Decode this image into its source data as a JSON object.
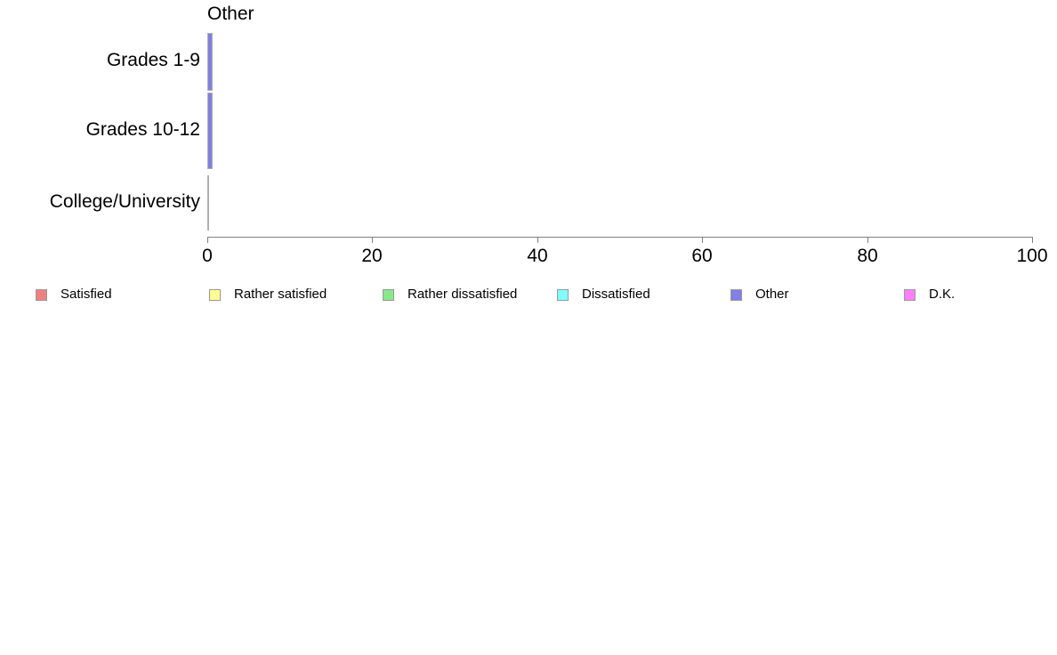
{
  "chart_data": {
    "type": "bar",
    "orientation": "horizontal",
    "title": "Other",
    "categories": [
      "Grades 1-9",
      "Grades 10-12",
      "College/University"
    ],
    "values": [
      0.4,
      0.4,
      0
    ],
    "xlabel": "",
    "ylabel": "",
    "xlim": [
      0,
      100
    ],
    "xticks": [
      0,
      20,
      40,
      60,
      80,
      100
    ],
    "grid": "off",
    "legend_position": "bottom",
    "bar_fill": "#8080e0",
    "bar_edge": "#b0b0b0",
    "axis_color": "#808080",
    "legend": [
      {
        "label": "Satisfied",
        "color": "#f08080"
      },
      {
        "label": "Rather satisfied",
        "color": "#ffff96"
      },
      {
        "label": "Rather dissatisfied",
        "color": "#8ae88a"
      },
      {
        "label": "Dissatisfied",
        "color": "#80ffff"
      },
      {
        "label": "Other",
        "color": "#8080e8"
      },
      {
        "label": "D.K.",
        "color": "#ff80ff"
      }
    ]
  }
}
